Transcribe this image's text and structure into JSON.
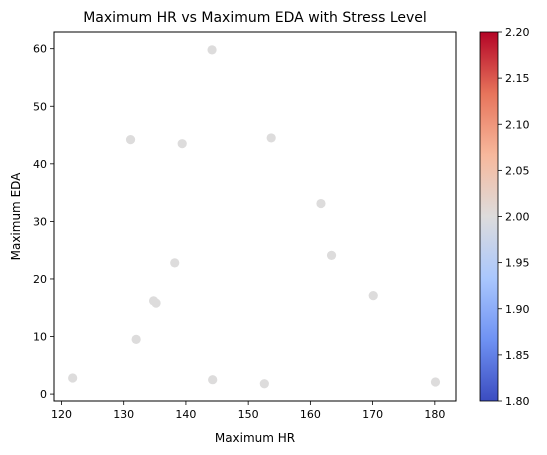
{
  "chart_data": {
    "type": "scatter",
    "title": "Maximum HR vs Maximum EDA with Stress Level",
    "xlabel": "Maximum HR",
    "ylabel": "Maximum EDA",
    "xlim": [
      118.8,
      183.4
    ],
    "ylim": [
      -1.2,
      62.9
    ],
    "xticks": [
      120,
      130,
      140,
      150,
      160,
      170,
      180
    ],
    "yticks": [
      0,
      10,
      20,
      30,
      40,
      50,
      60
    ],
    "grid": false,
    "point_color": "#dddcdc",
    "colorbar": {
      "colormap": "coolwarm",
      "min": 1.8,
      "max": 2.2,
      "ticks": [
        "1.80",
        "1.85",
        "1.90",
        "1.95",
        "2.00",
        "2.05",
        "2.10",
        "2.15",
        "2.20"
      ],
      "stops": [
        "#3b4cc0",
        "#6f92f3",
        "#aac7fd",
        "#dddcdc",
        "#f7b89c",
        "#e7745b",
        "#b40426"
      ]
    },
    "series": [
      {
        "points": [
          {
            "x": 144.2,
            "y": 59.8
          },
          {
            "x": 131.1,
            "y": 44.2
          },
          {
            "x": 153.7,
            "y": 44.5
          },
          {
            "x": 139.4,
            "y": 43.5
          },
          {
            "x": 161.7,
            "y": 33.1
          },
          {
            "x": 163.4,
            "y": 24.1
          },
          {
            "x": 138.2,
            "y": 22.8
          },
          {
            "x": 170.1,
            "y": 17.1
          },
          {
            "x": 134.8,
            "y": 16.2
          },
          {
            "x": 135.2,
            "y": 15.8
          },
          {
            "x": 132.0,
            "y": 9.5
          },
          {
            "x": 121.8,
            "y": 2.8
          },
          {
            "x": 144.3,
            "y": 2.5
          },
          {
            "x": 152.6,
            "y": 1.8
          },
          {
            "x": 180.1,
            "y": 2.1
          }
        ]
      }
    ]
  }
}
